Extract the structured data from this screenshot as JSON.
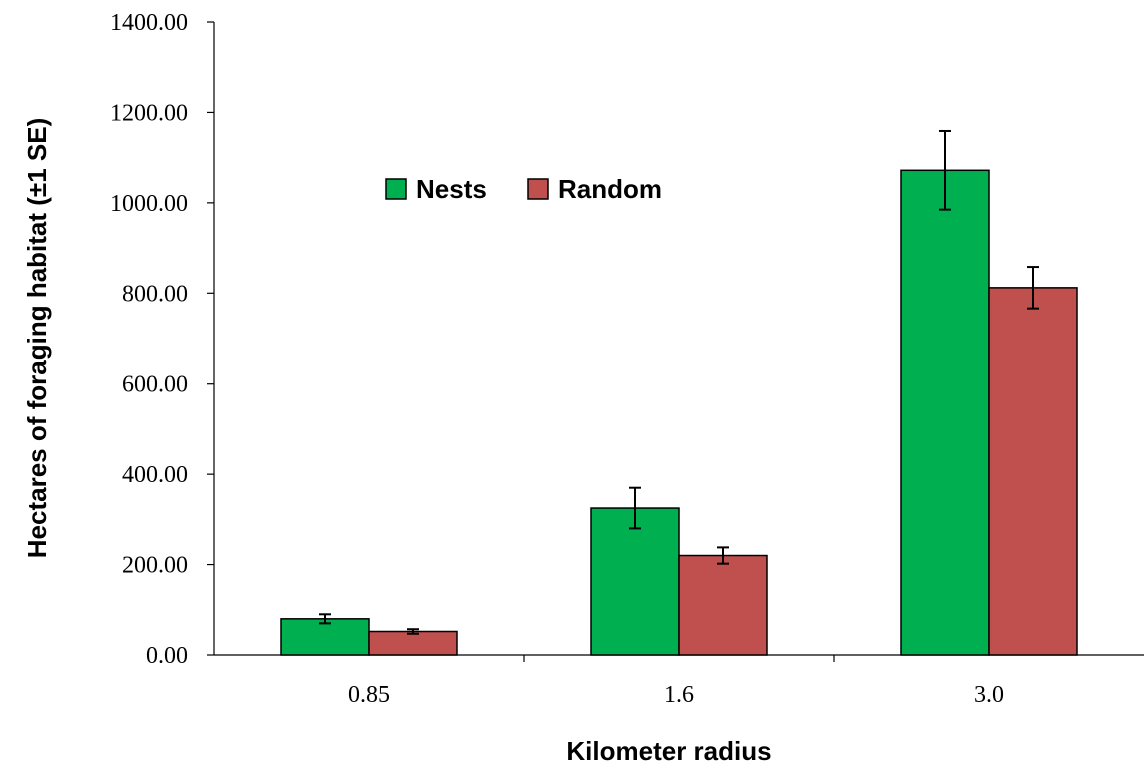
{
  "chart_data": {
    "type": "bar",
    "title": "",
    "xlabel": "Kilometer radius",
    "ylabel": "Hectares of foraging habitat (±1 SE)",
    "categories": [
      "0.85",
      "1.6",
      "3.0"
    ],
    "ylim": [
      0,
      1400
    ],
    "yticks": [
      "0.00",
      "200.00",
      "400.00",
      "600.00",
      "800.00",
      "1000.00",
      "1200.00",
      "1400.00"
    ],
    "grid": false,
    "legend_placement": "top-center",
    "series": [
      {
        "name": "Nests",
        "color": "#00b050",
        "values": [
          80,
          325,
          1072
        ],
        "errors": [
          10,
          45,
          87
        ]
      },
      {
        "name": "Random",
        "color": "#c0504d",
        "values": [
          52,
          220,
          812
        ],
        "errors": [
          5,
          18,
          46
        ]
      }
    ]
  }
}
